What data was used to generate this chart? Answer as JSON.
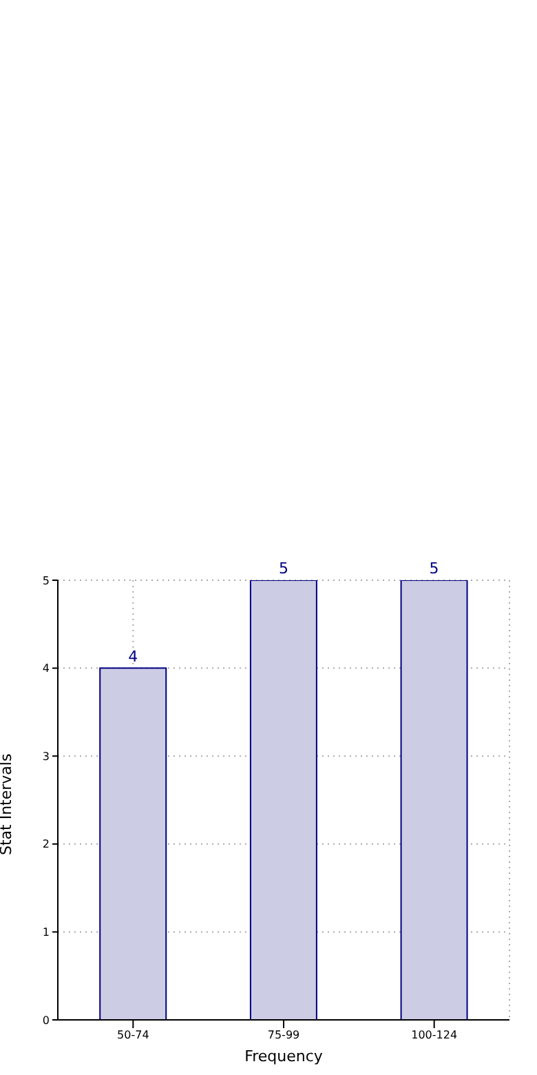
{
  "chart_data": {
    "type": "bar",
    "xlabel": "Frequency",
    "ylabel": "Stat Intervals",
    "categories": [
      "50-74",
      "75-99",
      "100-124"
    ],
    "values": [
      4,
      5,
      5
    ],
    "color": "#ccccE5",
    "ylim": [
      0,
      5
    ],
    "yticks": [
      0,
      1,
      2,
      3,
      4,
      5
    ],
    "grid": true,
    "data_labels": true
  }
}
